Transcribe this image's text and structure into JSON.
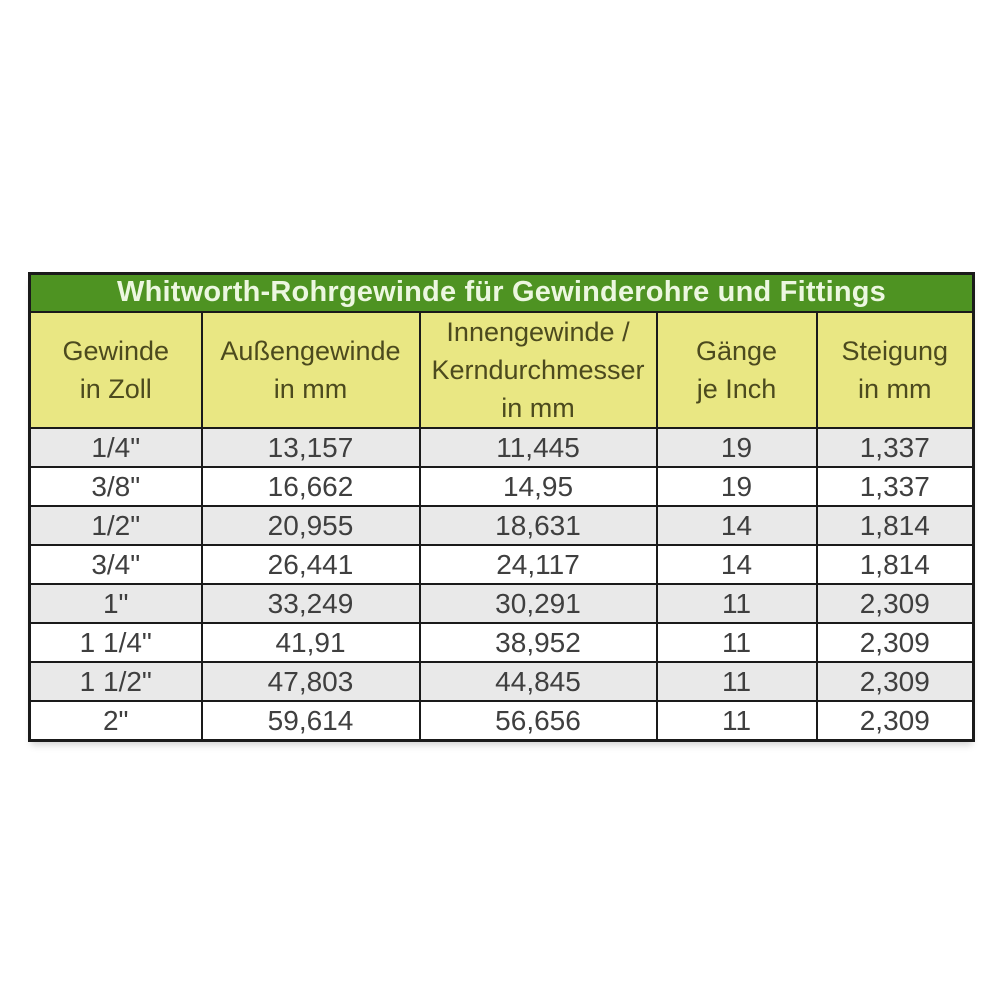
{
  "colors": {
    "title_bg": "#4e9322",
    "title_text": "#ecf7e0",
    "header_bg": "#e9e783",
    "header_text": "#4c4a1e",
    "row_gray": "#e9e9e9",
    "row_white": "#ffffff",
    "border_color": "#1a1a1a",
    "data_text": "#3f3f3f"
  },
  "chart_data": {
    "type": "table",
    "title": "Whitworth-Rohrgewinde für Gewinderohre und Fittings",
    "columns": [
      "Gewinde\nin Zoll",
      "Außengewinde\nin mm",
      "Innengewinde /\nKerndurchmesser\nin mm",
      "Gänge\nje Inch",
      "Steigung\nin mm"
    ],
    "rows": [
      [
        "1/4\"",
        "13,157",
        "11,445",
        "19",
        "1,337"
      ],
      [
        "3/8\"",
        "16,662",
        "14,95",
        "19",
        "1,337"
      ],
      [
        "1/2\"",
        "20,955",
        "18,631",
        "14",
        "1,814"
      ],
      [
        "3/4\"",
        "26,441",
        "24,117",
        "14",
        "1,814"
      ],
      [
        "1\"",
        "33,249",
        "30,291",
        "11",
        "2,309"
      ],
      [
        "1 1/4\"",
        "41,91",
        "38,952",
        "11",
        "2,309"
      ],
      [
        "1 1/2\"",
        "47,803",
        "44,845",
        "11",
        "2,309"
      ],
      [
        "2\"",
        "59,614",
        "56,656",
        "11",
        "2,309"
      ]
    ],
    "row_striping": "odd rows gray, even rows white",
    "layout": "title band green, header band yellow, black grid borders"
  }
}
